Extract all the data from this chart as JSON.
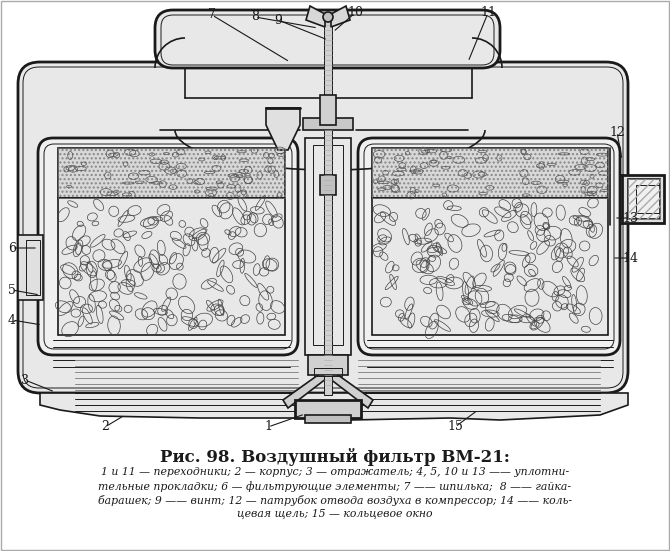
{
  "title": "Рис. 98. Воздушный фильтр ВМ-21:",
  "caption_line1": "1 и 11 — переходники; 2 — корпус; 3 — отражатель; 4, 5, 10 и 13 —— уплотни-",
  "caption_line2": "тельные прокладки; 6 — фильтрующие элементы; 7 —— шпилька;  8 —— гайка-",
  "caption_line3": "барашек; 9 —— винт; 12 — патрубок отвода воздуха в компрессор; 14 —— коль-",
  "caption_line4": "цевая щель; 15 — кольцевое окно",
  "bg_color": "#ffffff",
  "line_color": "#1a1a1a",
  "hatch_color": "#555555",
  "fill_light": "#e8e8e8",
  "fill_medium": "#cccccc",
  "fill_dark": "#999999"
}
